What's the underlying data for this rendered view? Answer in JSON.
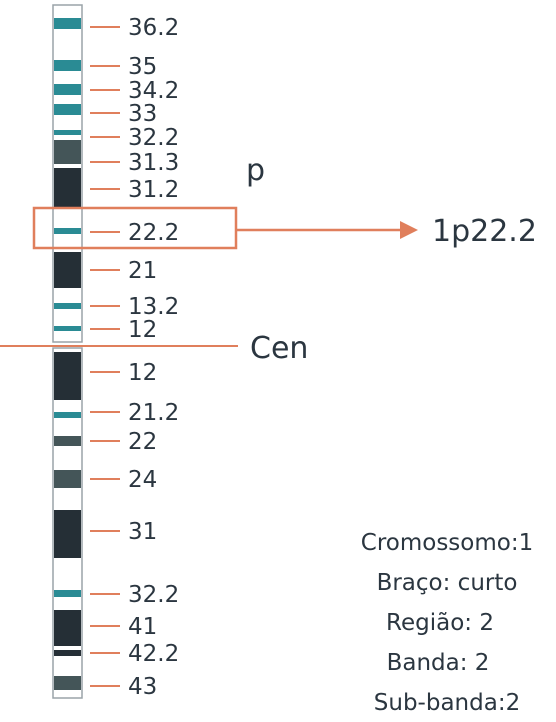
{
  "colors": {
    "dark": "#252f36",
    "grey": "#445558",
    "teal": "#2a8b94",
    "accent": "#e07f5c",
    "outline": "#9aa3a8",
    "text": "#2b3640"
  },
  "ideogram": {
    "p_arm_label": "p",
    "centromere_label": "Cen",
    "highlight_label": "1p22.2",
    "bands": [
      {
        "label": "36.2",
        "stain": "teal"
      },
      {
        "label": "35",
        "stain": "teal"
      },
      {
        "label": "34.2",
        "stain": "teal"
      },
      {
        "label": "33",
        "stain": "teal"
      },
      {
        "label": "32.2",
        "stain": "teal"
      },
      {
        "label": "31.3",
        "stain": "grey"
      },
      {
        "label": "31.2",
        "stain": "dark"
      },
      {
        "label": "22.2",
        "stain": "teal",
        "highlight": true
      },
      {
        "label": "21",
        "stain": "dark"
      },
      {
        "label": "13.2",
        "stain": "teal"
      },
      {
        "label": "12",
        "stain": "teal"
      },
      {
        "label": "12",
        "stain": "dark"
      },
      {
        "label": "21.2",
        "stain": "teal"
      },
      {
        "label": "22",
        "stain": "grey"
      },
      {
        "label": "24",
        "stain": "grey"
      },
      {
        "label": "31",
        "stain": "dark"
      },
      {
        "label": "32.2",
        "stain": "teal"
      },
      {
        "label": "41",
        "stain": "dark"
      },
      {
        "label": "42.2",
        "stain": "dark"
      },
      {
        "label": "43",
        "stain": "grey"
      }
    ]
  },
  "info": {
    "cromossomo": "Cromossomo:1",
    "braco": "Braço: curto",
    "regiao": "Região: 2",
    "banda": "Banda: 2",
    "subbanda": "Sub-banda:2"
  }
}
